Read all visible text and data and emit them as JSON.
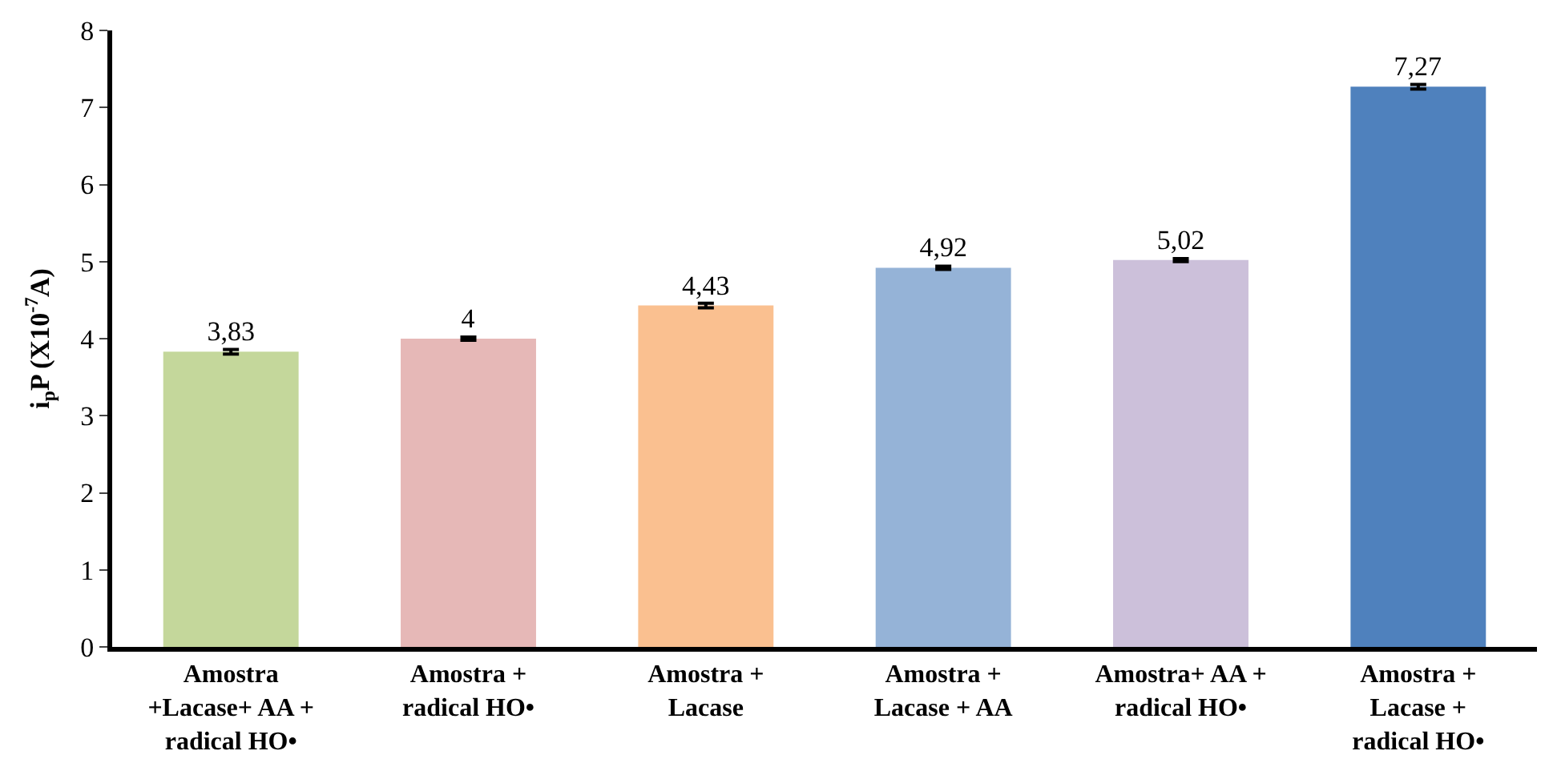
{
  "chart_data": {
    "type": "bar",
    "ylabel": "i$_{p}$P (X10$^{-7}$A)",
    "categories": [
      "Amostra +Lacase+ AA + radical HO•",
      "Amostra + radical HO•",
      "Amostra + Lacase",
      "Amostra + Lacase + AA",
      "Amostra+ AA + radical HO•",
      "Amostra + Lacase + radical HO•"
    ],
    "values": [
      3.83,
      4,
      4.43,
      4.92,
      5.02,
      7.27
    ],
    "colors": [
      "#c4d79b",
      "#e6b8b7",
      "#fac090",
      "#95b3d7",
      "#ccc0da",
      "#4f81bd"
    ],
    "errors": [
      0.03,
      0.02,
      0.03,
      0.02,
      0.02,
      0.03
    ],
    "value_labels": [
      "3,83",
      "4",
      "4,43",
      "4,92",
      "5,02",
      "7,27"
    ],
    "ylim": [
      0,
      8
    ],
    "yticks": [
      0,
      1,
      2,
      3,
      4,
      5,
      6,
      7,
      8
    ]
  }
}
